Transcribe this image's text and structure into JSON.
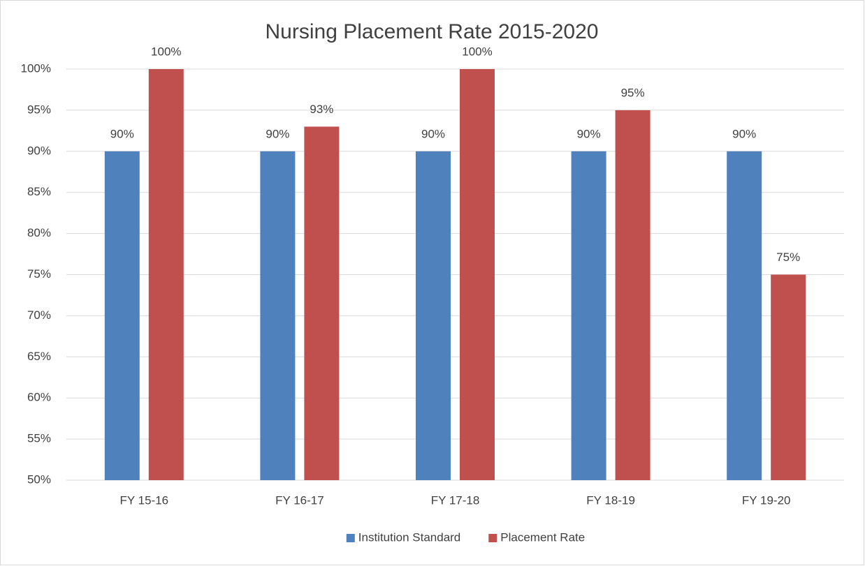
{
  "chart_data": {
    "type": "bar",
    "title": "Nursing Placement Rate 2015-2020",
    "categories": [
      "FY 15-16",
      "FY 16-17",
      "FY 17-18",
      "FY 18-19",
      "FY 19-20"
    ],
    "series": [
      {
        "name": "Institution Standard",
        "color": "#4f81bd",
        "values": [
          90,
          90,
          90,
          90,
          90
        ],
        "value_labels": [
          "90%",
          "90%",
          "90%",
          "90%",
          "90%"
        ]
      },
      {
        "name": "Placement Rate",
        "color": "#c0504d",
        "values": [
          100,
          93,
          100,
          95,
          75
        ],
        "value_labels": [
          "100%",
          "93%",
          "100%",
          "95%",
          "75%"
        ]
      }
    ],
    "ylim": [
      50,
      100
    ],
    "yticks": [
      {
        "value": 50,
        "label": "50%"
      },
      {
        "value": 55,
        "label": "55%"
      },
      {
        "value": 60,
        "label": "60%"
      },
      {
        "value": 65,
        "label": "65%"
      },
      {
        "value": 70,
        "label": "70%"
      },
      {
        "value": 75,
        "label": "75%"
      },
      {
        "value": 80,
        "label": "80%"
      },
      {
        "value": 85,
        "label": "85%"
      },
      {
        "value": 90,
        "label": "90%"
      },
      {
        "value": 95,
        "label": "95%"
      },
      {
        "value": 100,
        "label": "100%"
      }
    ],
    "grid": true,
    "legend": "bottom"
  }
}
